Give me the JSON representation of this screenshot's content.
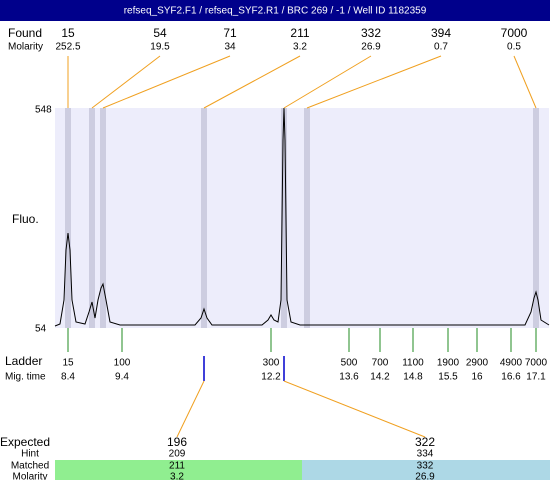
{
  "header": {
    "title": "refseq_SYF2.F1 / refseq_SYF2.R1 / BRC 269 / -1 / Well ID 1182359"
  },
  "found": {
    "label": "Found",
    "molarity_label": "Molarity",
    "peaks": [
      {
        "size": 15,
        "molarity": 252.5
      },
      {
        "size": 54,
        "molarity": 19.5
      },
      {
        "size": 71,
        "molarity": 34
      },
      {
        "size": 211,
        "molarity": 3.2
      },
      {
        "size": 332,
        "molarity": 26.9
      },
      {
        "size": 394,
        "molarity": 0.7
      },
      {
        "size": 7000,
        "molarity": 0.5
      }
    ]
  },
  "plot": {
    "y_label": "Fluo.",
    "y_top": 548,
    "y_bottom": 54
  },
  "ladder": {
    "label": "Ladder",
    "time_label": "Mig. time",
    "markers": [
      {
        "size": 15,
        "time": 8.4
      },
      {
        "size": 100,
        "time": 9.4
      },
      {
        "size": 300,
        "time": 12.2
      },
      {
        "size": 500,
        "time": 13.6
      },
      {
        "size": 700,
        "time": 14.2
      },
      {
        "size": 1100,
        "time": 14.8
      },
      {
        "size": 1900,
        "time": 15.5
      },
      {
        "size": 2900,
        "time": 16
      },
      {
        "size": 4900,
        "time": 16.6
      },
      {
        "size": 7000,
        "time": 17.1
      }
    ]
  },
  "expected": {
    "label": "Expected",
    "hint_label": "Hint",
    "matched_label": "Matched",
    "molarity_label": "Molarity",
    "items": [
      {
        "expected": 196,
        "hint": 209,
        "matched": 211,
        "molarity": 3.2
      },
      {
        "expected": 322,
        "hint": 334,
        "matched": 332,
        "molarity": 26.9
      }
    ]
  }
}
